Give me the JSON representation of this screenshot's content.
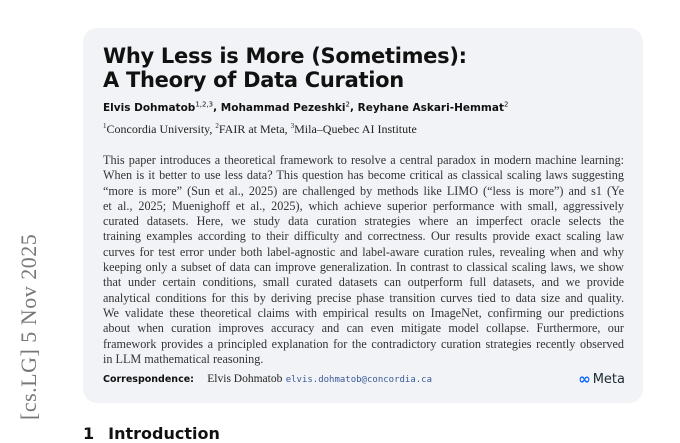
{
  "arxiv_stamp": "[cs.LG]  5 Nov 2025",
  "paper": {
    "title_lines": [
      "Why Less is More (Sometimes):",
      "A Theory of Data Curation"
    ],
    "authors": [
      {
        "name": "Elvis Dohmatob",
        "sup": "1,2,3"
      },
      {
        "name": "Mohammad Pezeshki",
        "sup": "2"
      },
      {
        "name": "Reyhane Askari-Hemmat",
        "sup": "2"
      }
    ],
    "affiliations": [
      {
        "sup": "1",
        "name": "Concordia University"
      },
      {
        "sup": "2",
        "name": "FAIR at Meta"
      },
      {
        "sup": "3",
        "name": "Mila–Quebec AI Institute"
      }
    ],
    "abstract_lines": [
      "This paper introduces a theoretical framework to resolve a central paradox in modern machine learning:",
      "When is it better to use less data? This question has become critical as classical scaling laws suggesting",
      "“more is more” (Sun et al., 2025) are challenged by methods like LIMO (“less is more”) and s1 (Ye",
      "et al., 2025; Muenighoff et al., 2025), which achieve superior performance with small, aggressively",
      "curated datasets. Here, we study data curation strategies where an imperfect oracle selects the",
      "training examples according to their difficulty and correctness. Our results provide exact scaling law",
      "curves for test error under both label-agnostic and label-aware curation rules, revealing when and why",
      "keeping only a subset of data can improve generalization. In contrast to classical scaling laws, we show",
      "that under certain conditions, small curated datasets can outperform full datasets, and we provide",
      "analytical conditions for this by deriving precise phase transition curves tied to data size and quality.",
      "We validate these theoretical claims with empirical results on ImageNet, confirming our predictions",
      "about when curation improves accuracy and can even mitigate model collapse. Furthermore, our",
      "framework provides a principled explanation for the contradictory curation strategies recently observed",
      "in LLM mathematical reasoning."
    ],
    "correspondence_label": "Correspondence:",
    "correspondence_name": "Elvis Dohmatob",
    "correspondence_email": "elvis.dohmatob@concordia.ca",
    "logo_text": "Meta",
    "logo_icon": "meta-infinity-icon",
    "next_section_number": "1",
    "next_section_title": "Introduction"
  },
  "colors": {
    "card_bg": "#f2f3f6",
    "email": "#3a5a9a",
    "meta_blue": "#0866ff"
  }
}
